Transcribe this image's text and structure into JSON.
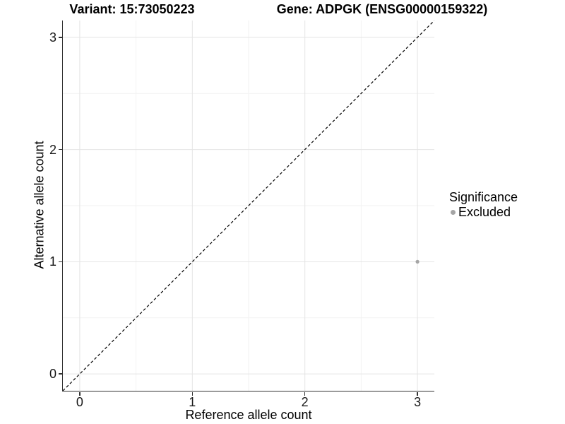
{
  "header": {
    "title_left": "Variant: 15:73050223",
    "title_right": "Gene: ADPGK (ENSG00000159322)"
  },
  "chart_data": {
    "type": "scatter",
    "xlabel": "Reference allele count",
    "ylabel": "Alternative allele count",
    "xlim": [
      -0.15,
      3.15
    ],
    "ylim": [
      -0.15,
      3.15
    ],
    "x_major_ticks": [
      0,
      1,
      2,
      3
    ],
    "y_major_ticks": [
      0,
      1,
      2,
      3
    ],
    "x_minor_ticks": [
      0.5,
      1.5,
      2.5
    ],
    "y_minor_ticks": [
      0.5,
      1.5,
      2.5
    ],
    "grid": "major+minor",
    "identity_line": {
      "slope": 1,
      "intercept": 0,
      "style": "dashed",
      "color": "#000000"
    },
    "series": [
      {
        "name": "Excluded",
        "color": "#a5a5a5",
        "points": [
          {
            "x": 3,
            "y": 1
          }
        ]
      }
    ],
    "legend": {
      "title": "Significance",
      "position": "right",
      "entries": [
        {
          "label": "Excluded",
          "color": "#a5a5a5"
        }
      ]
    }
  },
  "colors": {
    "grid_major": "#e4e4e4",
    "grid_minor": "#f2f2f2",
    "axis_line": "#333333",
    "tick_text": "#1a1a1a",
    "title_text": "#000000",
    "point": "#a5a5a5"
  }
}
